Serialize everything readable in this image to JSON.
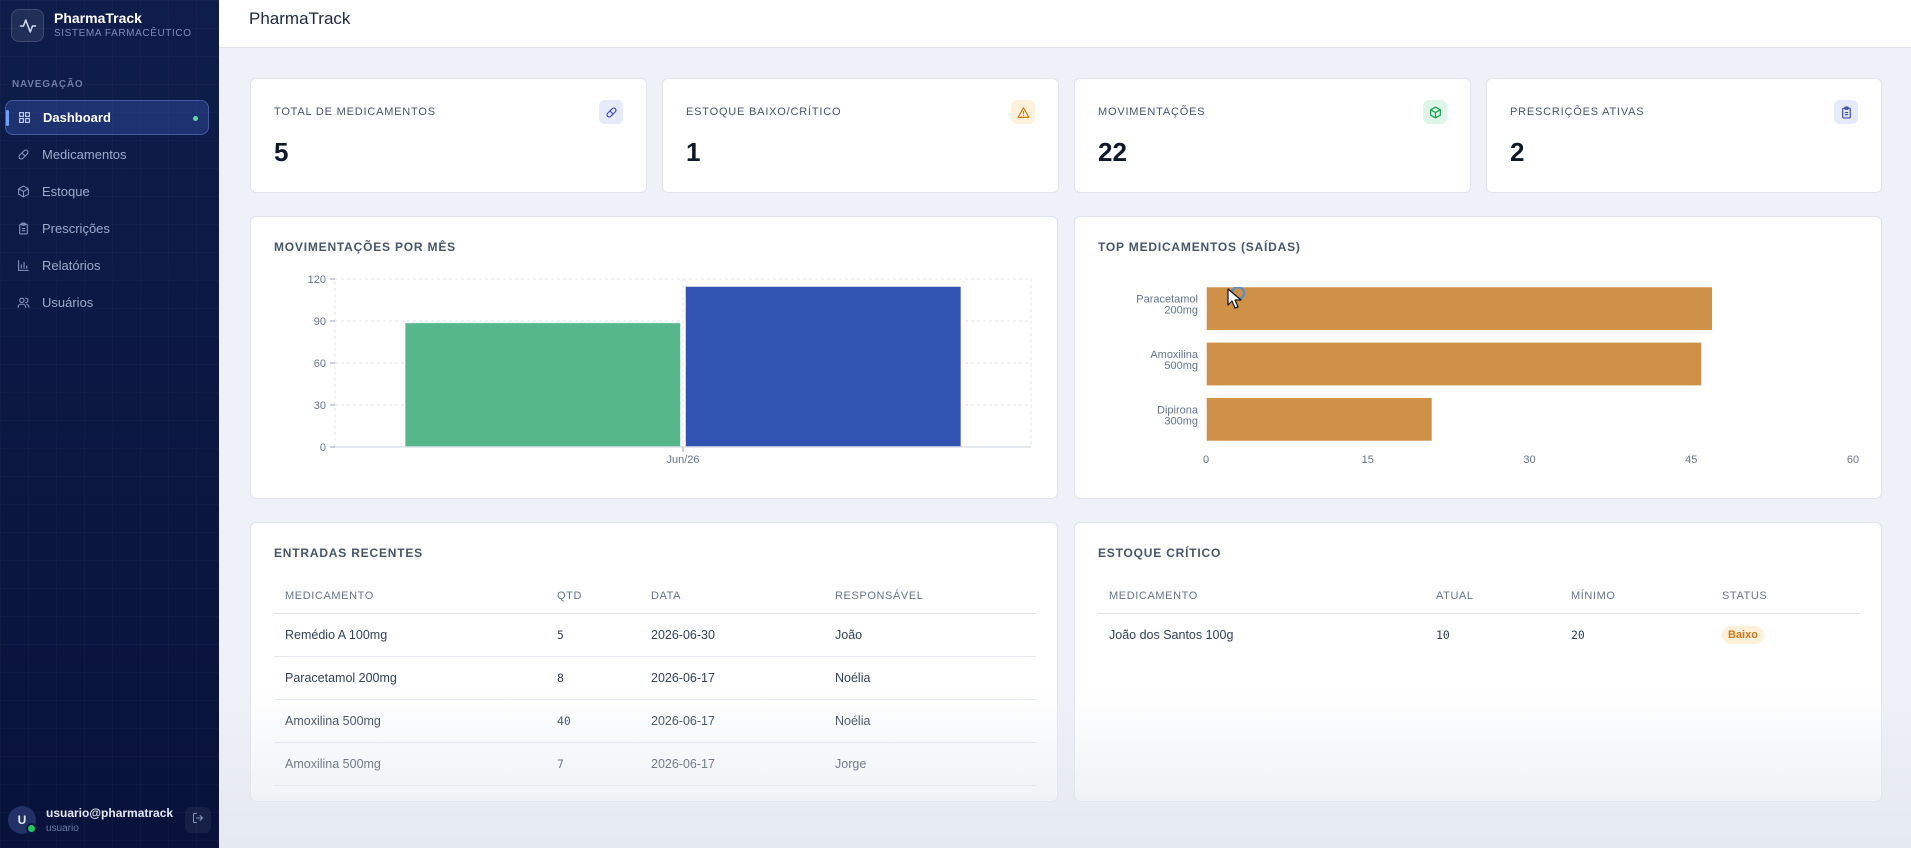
{
  "app": {
    "name": "PharmaTrack",
    "subtitle": "SISTEMA FARMACÊUTICO"
  },
  "sidebar": {
    "heading": "NAVEGAÇÃO",
    "items": [
      {
        "label": "Dashboard",
        "icon": "grid-icon",
        "active": true
      },
      {
        "label": "Medicamentos",
        "icon": "pill-icon"
      },
      {
        "label": "Estoque",
        "icon": "box-icon"
      },
      {
        "label": "Prescrições",
        "icon": "clipboard-icon"
      },
      {
        "label": "Relatórios",
        "icon": "bar-chart-icon"
      },
      {
        "label": "Usuários",
        "icon": "users-icon"
      }
    ],
    "user": {
      "initial": "U",
      "email": "usuario@pharmatrack",
      "role": "usuario"
    }
  },
  "header": {
    "title": "PharmaTrack"
  },
  "stats": [
    {
      "label": "TOTAL DE MEDICAMENTOS",
      "value": "5",
      "icon": "pill-icon",
      "color": "#3b4fb0"
    },
    {
      "label": "ESTOQUE BAIXO/CRÍTICO",
      "value": "1",
      "icon": "warning-icon",
      "color": "#d97706"
    },
    {
      "label": "MOVIMENTAÇÕES",
      "value": "22",
      "icon": "box-icon",
      "color": "#16a34a"
    },
    {
      "label": "PRESCRIÇÕES ATIVAS",
      "value": "2",
      "icon": "clipboard-icon",
      "color": "#3b4fb0"
    }
  ],
  "monthly_chart": {
    "title": "MOVIMENTAÇÕES POR MÊS"
  },
  "top_chart": {
    "title": "TOP MEDICAMENTOS (SAÍDAS)"
  },
  "chart_data": [
    {
      "type": "bar",
      "title": "MOVIMENTAÇÕES POR MÊS",
      "categories": [
        "Jun/26"
      ],
      "series": [
        {
          "values": [
            89
          ],
          "color": "#56b78b"
        },
        {
          "values": [
            115
          ],
          "color": "#3153b1"
        }
      ],
      "ylim": [
        0,
        120
      ],
      "yticks": [
        0,
        30,
        60,
        90,
        120
      ],
      "grid": true
    },
    {
      "type": "bar",
      "orientation": "horizontal",
      "title": "TOP MEDICAMENTOS (SAÍDAS)",
      "categories": [
        [
          "Paracetamol",
          "200mg"
        ],
        [
          "Amoxilina",
          "500mg"
        ],
        [
          "Dipirona",
          "300mg"
        ]
      ],
      "values": [
        47,
        46,
        21
      ],
      "xlim": [
        0,
        60
      ],
      "xticks": [
        0,
        15,
        30,
        45,
        60
      ],
      "color": "#cf9147",
      "grid": false
    }
  ],
  "recent_entries": {
    "title": "ENTRADAS RECENTES",
    "columns": [
      "MEDICAMENTO",
      "QTD",
      "DATA",
      "RESPONSÁVEL"
    ],
    "rows": [
      [
        "Remédio A 100mg",
        "5",
        "2026-06-30",
        "João"
      ],
      [
        "Paracetamol 200mg",
        "8",
        "2026-06-17",
        "Noélia"
      ],
      [
        "Amoxilina 500mg",
        "40",
        "2026-06-17",
        "Noélia"
      ],
      [
        "Amoxilina 500mg",
        "7",
        "2026-06-17",
        "Jorge"
      ]
    ]
  },
  "critical_stock": {
    "title": "ESTOQUE CRÍTICO",
    "columns": [
      "MEDICAMENTO",
      "ATUAL",
      "MÍNIMO",
      "STATUS"
    ],
    "rows": [
      [
        "João dos Santos 100g",
        "10",
        "20",
        "Baixo"
      ]
    ]
  }
}
